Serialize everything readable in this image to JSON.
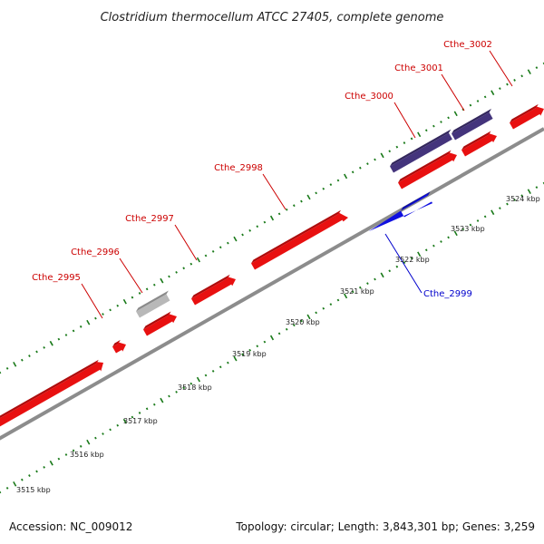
{
  "title": "Clostridium thermocellum ATCC 27405, complete genome",
  "footer": {
    "accession": "Accession: NC_009012",
    "summary": "Topology: circular; Length: 3,843,301 bp; Genes: 3,259"
  },
  "colors": {
    "forward_gene": "#e81010",
    "reverse_gene": "#1010e0",
    "rna_gene": "#44347c",
    "pseudogene": "#b8b8b8",
    "forward_label": "#cc0000",
    "reverse_label": "#0000cc",
    "tick": "#1a7a1a",
    "backbone": "#8c8c8c"
  },
  "scale_labels": [
    "3515 kbp",
    "3516 kbp",
    "3517 kbp",
    "3518 kbp",
    "3519 kbp",
    "3520 kbp",
    "3521 kbp",
    "3522 kbp",
    "3523 kbp",
    "3524 kbp"
  ],
  "gene_labels": [
    {
      "name": "Cthe_2995",
      "strand": "forward"
    },
    {
      "name": "Cthe_2996",
      "strand": "forward"
    },
    {
      "name": "Cthe_2997",
      "strand": "forward"
    },
    {
      "name": "Cthe_2998",
      "strand": "forward"
    },
    {
      "name": "Cthe_3000",
      "strand": "forward"
    },
    {
      "name": "Cthe_3001",
      "strand": "forward"
    },
    {
      "name": "Cthe_3002",
      "strand": "forward"
    },
    {
      "name": "Cthe_2999",
      "strand": "reverse"
    }
  ]
}
